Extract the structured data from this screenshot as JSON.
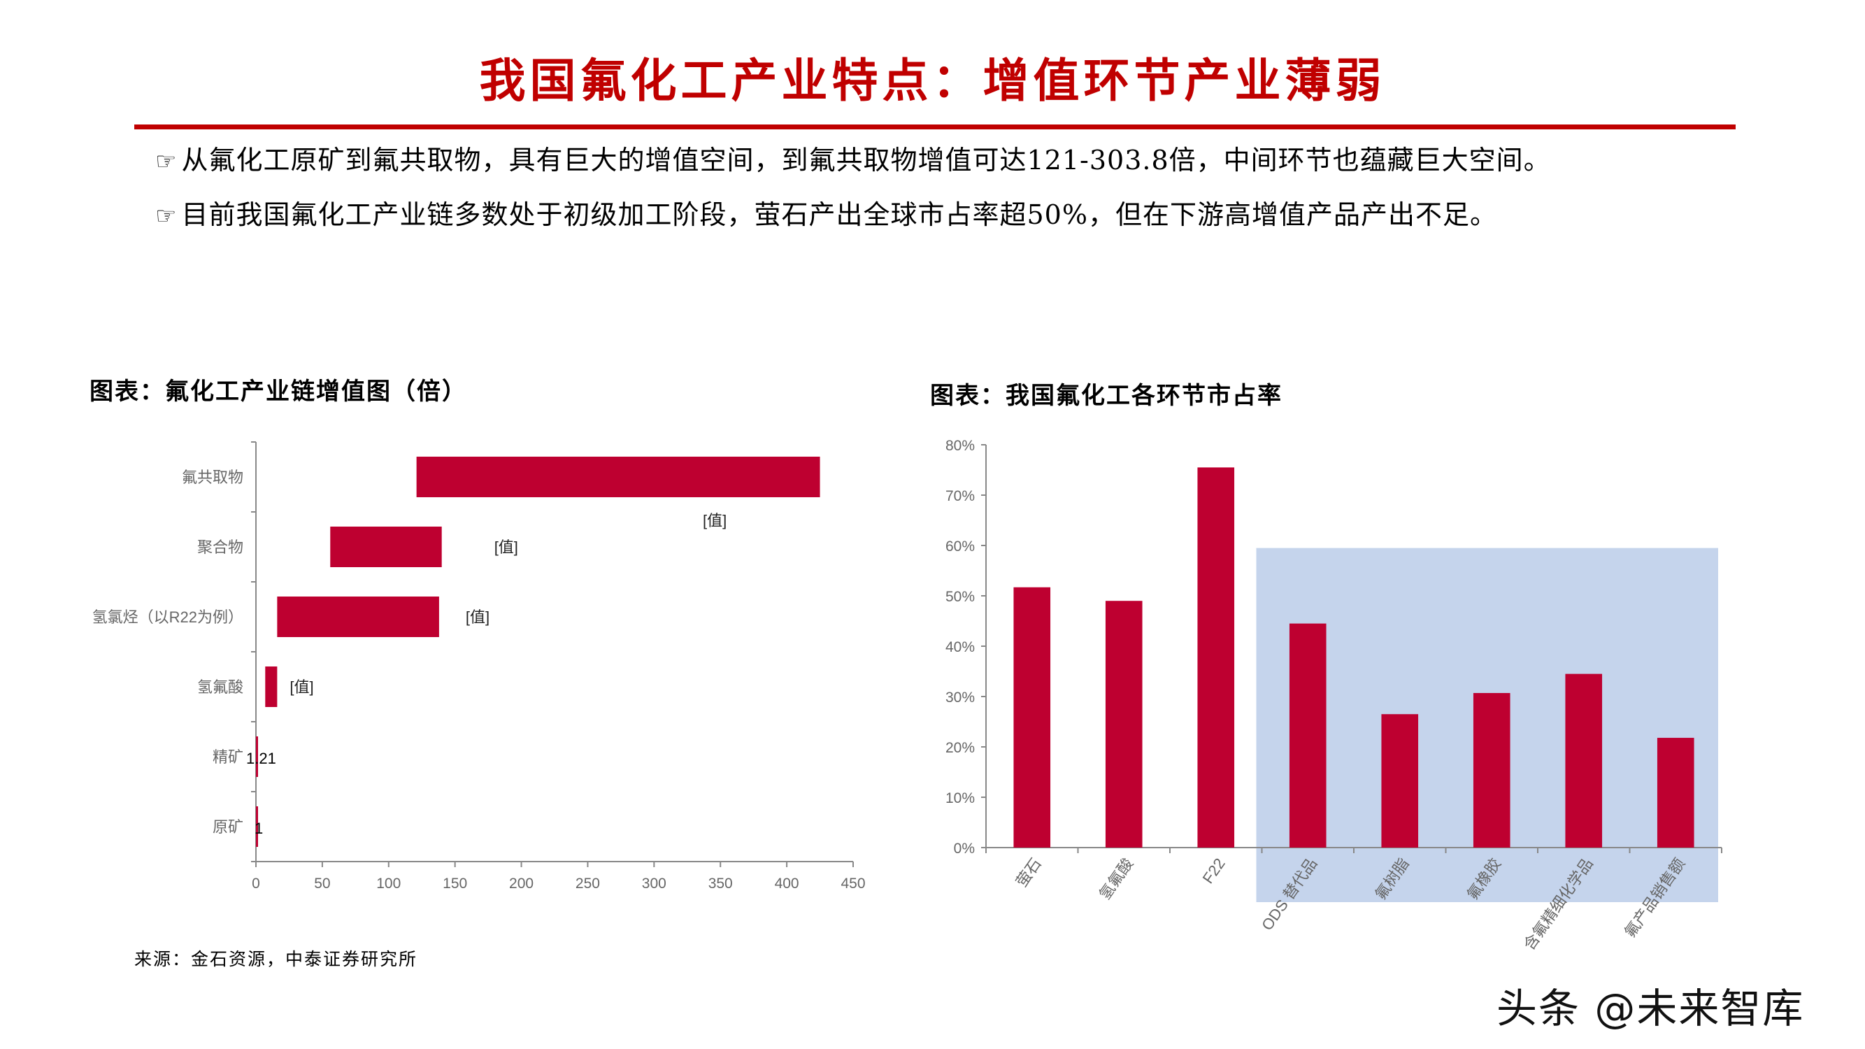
{
  "header": {
    "title": "我国氟化工产业特点：增值环节产业薄弱"
  },
  "bullets": [
    {
      "icon": "pointing-hand-icon",
      "glyph": "☞",
      "text": "从氟化工原矿到氟共取物，具有巨大的增值空间，到氟共取物增值可达121-303.8倍，中间环节也蕴藏巨大空间。"
    },
    {
      "icon": "pointing-hand-icon",
      "glyph": "☞",
      "text": "目前我国氟化工产业链多数处于初级加工阶段，萤石产出全球市占率超50%，但在下游高增值产品产出不足。"
    }
  ],
  "left_chart": {
    "title": "图表：氟化工产业链增值图（倍）"
  },
  "right_chart": {
    "title": "图表：我国氟化工各环节市占率"
  },
  "source": "来源：金石资源，中泰证券研究所",
  "watermark": "头条 @未来智库",
  "colors": {
    "accent_red": "#c00000",
    "bar_red": "#be0030",
    "highlight_blue": "#c5d4ec",
    "axis_gray": "#888888",
    "label_gray": "#666666"
  },
  "chart_data": [
    {
      "type": "bar",
      "orientation": "horizontal",
      "subtype": "floating-waterfall",
      "title": "图表：氟化工产业链增值图（倍）",
      "categories": [
        "氟共取物",
        "聚合物",
        "氢氯烃（以R22为例）",
        "氢氟酸",
        "精矿",
        "原矿"
      ],
      "series": [
        {
          "name": "增值（倍）",
          "start": [
            121,
            56,
            16,
            7,
            0,
            0
          ],
          "end": [
            425,
            140,
            138,
            16,
            1.21,
            1
          ],
          "labels": [
            "[值]",
            "[值]",
            "[值]",
            "[值]",
            "1.21",
            "1"
          ]
        }
      ],
      "xlim": [
        0,
        450
      ],
      "xticks": [
        0,
        50,
        100,
        150,
        200,
        250,
        300,
        350,
        400,
        450
      ],
      "xlabel": "",
      "ylabel": "",
      "grid": false,
      "legend": null
    },
    {
      "type": "bar",
      "orientation": "vertical",
      "title": "图表：我国氟化工各环节市占率",
      "categories": [
        "萤石",
        "氢氟酸",
        "F22",
        "ODS 替代品",
        "氟树脂",
        "氟橡胶",
        "含氟精细化学品",
        "氟产品销售额"
      ],
      "values": [
        51.7,
        49.0,
        75.5,
        44.5,
        26.5,
        30.7,
        34.5,
        21.8
      ],
      "unit": "%",
      "ylim": [
        0,
        80
      ],
      "yticks": [
        "0%",
        "10%",
        "20%",
        "30%",
        "40%",
        "50%",
        "60%",
        "70%",
        "80%"
      ],
      "highlight_region": {
        "from_category": "ODS 替代品",
        "to_category": "氟产品销售额",
        "top": 59.5,
        "color": "#c5d4ec"
      },
      "xlabel": "",
      "ylabel": "",
      "grid": false,
      "legend": null
    }
  ]
}
